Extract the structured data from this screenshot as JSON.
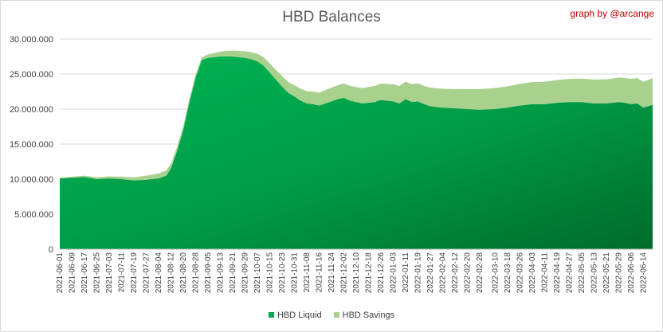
{
  "chart_data": {
    "type": "area",
    "title": "HBD Balances",
    "subtitle": "graph by @arcange",
    "stacked": true,
    "ylim": [
      0,
      30000000
    ],
    "yticks": [
      "0",
      "5.000.000",
      "10.000.000",
      "15.000.000",
      "20.000.000",
      "25.000.000",
      "30.000.000"
    ],
    "grid": true,
    "legend_position": "bottom",
    "x_start": "2021-06-01",
    "x_end": "2022-06-20",
    "xticks": [
      "2021-06-01",
      "2021-06-09",
      "2021-06-17",
      "2021-06-25",
      "2021-07-03",
      "2021-07-11",
      "2021-07-19",
      "2021-07-27",
      "2021-08-04",
      "2021-08-12",
      "2021-08-20",
      "2021-08-28",
      "2021-09-05",
      "2021-09-13",
      "2021-09-21",
      "2021-09-29",
      "2021-10-07",
      "2021-10-15",
      "2021-10-23",
      "2021-10-31",
      "2021-11-08",
      "2021-11-16",
      "2021-11-24",
      "2021-12-02",
      "2021-12-10",
      "2021-12-18",
      "2021-12-26",
      "2022-01-03",
      "2022-01-11",
      "2022-01-19",
      "2022-01-27",
      "2022-02-04",
      "2022-02-12",
      "2022-02-20",
      "2022-02-28",
      "2022-03-10",
      "2022-03-18",
      "2022-03-26",
      "2022-04-03",
      "2022-04-11",
      "2022-04-19",
      "2022-04-27",
      "2022-05-05",
      "2022-05-13",
      "2022-05-21",
      "2022-05-29",
      "2022-06-06",
      "2022-06-14"
    ],
    "x": [
      "2021-06-01",
      "2021-06-09",
      "2021-06-17",
      "2021-06-25",
      "2021-07-03",
      "2021-07-11",
      "2021-07-19",
      "2021-07-27",
      "2021-08-04",
      "2021-08-09",
      "2021-08-12",
      "2021-08-16",
      "2021-08-20",
      "2021-08-24",
      "2021-08-28",
      "2021-09-01",
      "2021-09-05",
      "2021-09-09",
      "2021-09-13",
      "2021-09-17",
      "2021-09-21",
      "2021-09-25",
      "2021-09-29",
      "2021-10-03",
      "2021-10-07",
      "2021-10-11",
      "2021-10-15",
      "2021-10-19",
      "2021-10-23",
      "2021-10-27",
      "2021-10-31",
      "2021-11-04",
      "2021-11-08",
      "2021-11-12",
      "2021-11-16",
      "2021-11-20",
      "2021-11-24",
      "2021-11-28",
      "2021-12-02",
      "2021-12-06",
      "2021-12-10",
      "2021-12-14",
      "2021-12-18",
      "2021-12-22",
      "2021-12-26",
      "2021-12-30",
      "2022-01-03",
      "2022-01-07",
      "2022-01-11",
      "2022-01-15",
      "2022-01-19",
      "2022-01-23",
      "2022-01-27",
      "2022-02-04",
      "2022-02-12",
      "2022-02-20",
      "2022-02-28",
      "2022-03-10",
      "2022-03-18",
      "2022-03-26",
      "2022-04-03",
      "2022-04-11",
      "2022-04-19",
      "2022-04-27",
      "2022-05-05",
      "2022-05-13",
      "2022-05-21",
      "2022-05-29",
      "2022-06-02",
      "2022-06-06",
      "2022-06-10",
      "2022-06-14",
      "2022-06-20"
    ],
    "series": [
      {
        "name": "HBD Liquid",
        "color": "#00a94f",
        "values": [
          10100000,
          10200000,
          10300000,
          10000000,
          10100000,
          10000000,
          9800000,
          9900000,
          10100000,
          10500000,
          11500000,
          14000000,
          17000000,
          21000000,
          24500000,
          27000000,
          27300000,
          27400000,
          27500000,
          27500000,
          27500000,
          27400000,
          27300000,
          27100000,
          26800000,
          26200000,
          25200000,
          24200000,
          23200000,
          22300000,
          21800000,
          21200000,
          20800000,
          20700000,
          20500000,
          20800000,
          21100000,
          21400000,
          21600000,
          21200000,
          21000000,
          20800000,
          20900000,
          21000000,
          21300000,
          21200000,
          21100000,
          20800000,
          21400000,
          21000000,
          21100000,
          20700000,
          20400000,
          20200000,
          20100000,
          20000000,
          19900000,
          20000000,
          20200000,
          20500000,
          20700000,
          20700000,
          20900000,
          21000000,
          21000000,
          20800000,
          20800000,
          21000000,
          20900000,
          20700000,
          20800000,
          20200000,
          20600000
        ]
      },
      {
        "name": "HBD Savings",
        "color": "#a9d18e",
        "values": [
          100000,
          150000,
          200000,
          250000,
          300000,
          350000,
          450000,
          600000,
          700000,
          750000,
          700000,
          600000,
          600000,
          500000,
          400000,
          400000,
          500000,
          600000,
          700000,
          800000,
          850000,
          900000,
          950000,
          1000000,
          1100000,
          1200000,
          1300000,
          1400000,
          1500000,
          1550000,
          1600000,
          1700000,
          1750000,
          1800000,
          1850000,
          1900000,
          1950000,
          2000000,
          2050000,
          2100000,
          2150000,
          2200000,
          2250000,
          2300000,
          2350000,
          2400000,
          2450000,
          2500000,
          2500000,
          2550000,
          2600000,
          2600000,
          2650000,
          2700000,
          2750000,
          2850000,
          2950000,
          3000000,
          3050000,
          3100000,
          3150000,
          3200000,
          3250000,
          3300000,
          3350000,
          3400000,
          3450000,
          3500000,
          3550000,
          3600000,
          3650000,
          3700000,
          3800000
        ]
      }
    ]
  }
}
